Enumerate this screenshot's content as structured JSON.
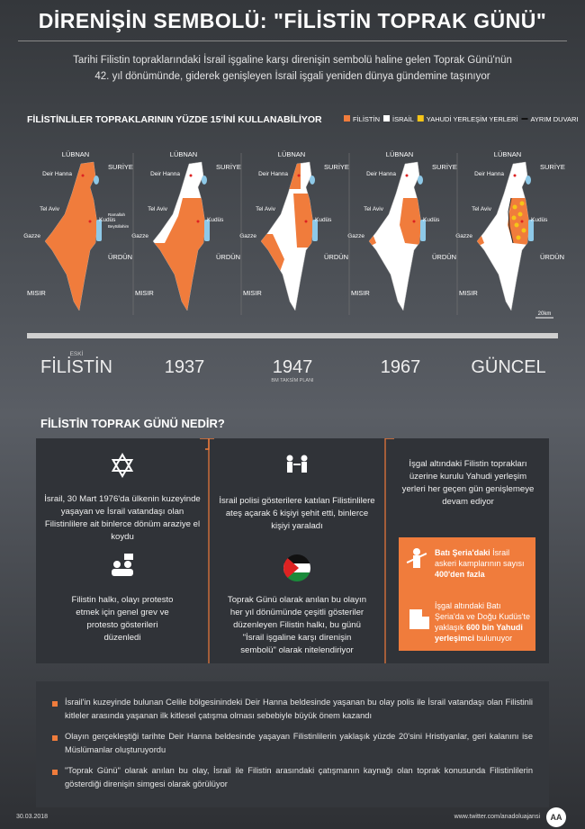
{
  "header": {
    "title": "DİRENİŞİN SEMBOLÜ: \"FİLİSTİN TOPRAK GÜNÜ\"",
    "subtitle": [
      "Tarihi Filistin topraklarındaki İsrail işgaline karşı direnişin sembolü haline gelen Toprak Günü'nün",
      "42. yıl dönümünde, giderek genişleyen İsrail işgali yeniden dünya gündemine taşınıyor"
    ]
  },
  "maps": {
    "heading": "FİLİSTİNLİLER TOPRAKLARININ YÜZDE 15'İNİ KULLANABİLİYOR",
    "legend": [
      {
        "label": "FİLİSTİN",
        "color": "#f07c3c"
      },
      {
        "label": "İSRAİL",
        "color": "#ffffff"
      },
      {
        "label": "YAHUDİ YERLEŞİM YERLERİ",
        "color": "#f5c518"
      },
      {
        "label": "AYRIM DUVARI",
        "color": "#222222"
      }
    ],
    "places": [
      "LÜBNAN",
      "SURİYE",
      "Deir Hanna",
      "Tel Aviv",
      "Kudüs",
      "Gazze",
      "ÜRDÜN",
      "MISIR"
    ],
    "extra": [
      "Ramallah",
      "Beytüllahim"
    ],
    "scale": "20km",
    "periods": [
      {
        "top": "ESKİ",
        "label": "FİLİSTİN"
      },
      {
        "label": "1937"
      },
      {
        "label": "1947",
        "bottom": "BM TAKSİM PLANI"
      },
      {
        "label": "1967"
      },
      {
        "label": "GÜNCEL"
      }
    ]
  },
  "about": {
    "heading": "FİLİSTİN TOPRAK GÜNÜ NEDİR?",
    "items": [
      "İsrail, 30 Mart 1976'da ülkenin kuzeyinde yaşayan ve İsrail vatandaşı olan Filistinlilere ait binlerce dönüm araziye el koydu",
      "Filistin halkı, olayı protesto etmek için genel grev ve protesto gösterileri düzenledi",
      "İsrail polisi gösterilere katılan Filistinlilere ateş açarak 6 kişiyi şehit etti, binlerce kişiyi yaraladı",
      "Toprak Günü olarak anılan bu olayın her yıl dönümünde çeşitli gösteriler düzenleyen Filistin halkı, bu günü \"İsrail işgaline karşı direnişin sembolü\" olarak nitelendiriyor",
      "İşgal altındaki Filistin toprakları üzerine kurulu Yahudi yerleşim yerleri her geçen gün genişlemeye devam ediyor"
    ],
    "stats": [
      [
        {
          "t": "Batı Şeria'daki",
          "bold": true
        },
        {
          "t": " İsrail askeri kamplarının sayısı "
        },
        {
          "t": "400'den fazla",
          "bold": true
        }
      ],
      [
        {
          "t": "İşgal altındaki Batı Şeria'da ve Doğu Kudüs'te yaklaşık "
        },
        {
          "t": "600 bin Yahudi yerleşimci",
          "bold": true
        },
        {
          "t": " bulunuyor"
        }
      ]
    ]
  },
  "notes": [
    "İsrail'in kuzeyinde bulunan Celile bölgesinindeki Deir Hanna beldesinde yaşanan bu olay polis ile İsrail vatandaşı olan Filistinli kitleler arasında yaşanan ilk kitlesel çatışma olması sebebiyle büyük önem kazandı",
    "Olayın gerçekleştiği tarihte Deir Hanna beldesinde yaşayan Filistinlilerin yaklaşık yüzde 20'sini Hristiyanlar, geri kalanını ise Müslümanlar oluşturuyordu",
    "\"Toprak Günü\" olarak anılan bu olay, İsrail ile Filistin arasındaki çatışmanın kaynağı olan toprak konusunda Filistinlilerin gösterdiği direnişin simgesi olarak görülüyor"
  ],
  "footer": {
    "date": "30.03.2018",
    "link": "www.twitter.com/anadoluajansi",
    "logo": "AA"
  }
}
